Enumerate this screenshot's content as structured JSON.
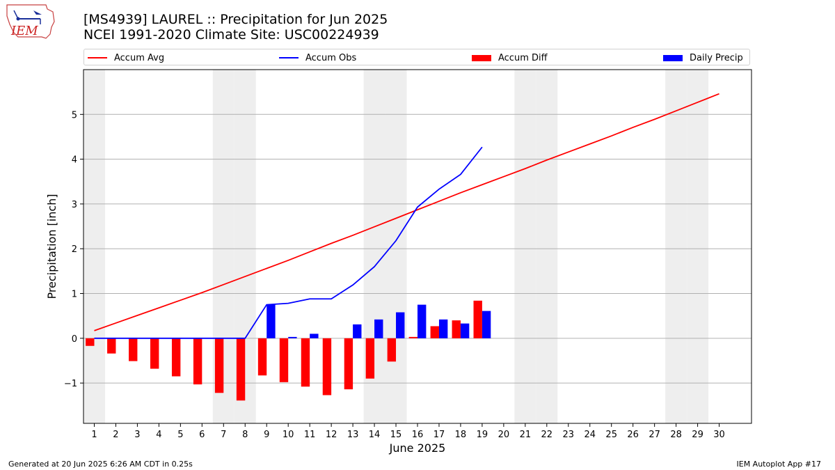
{
  "title_line1": "[MS4939] LAUREL :: Precipitation for Jun 2025",
  "title_line2": "NCEI 1991-2020 Climate Site: USC00224939",
  "logo_text": "IEM",
  "footer_left": "Generated at 20 Jun 2025 6:26 AM CDT in 0.25s",
  "footer_right": "IEM Autoplot App #17",
  "legend": [
    {
      "label": "Accum Avg",
      "kind": "line",
      "color": "#ff0000"
    },
    {
      "label": "Accum Obs",
      "kind": "line",
      "color": "#0000ff"
    },
    {
      "label": "Accum Diff",
      "kind": "bar",
      "color": "#ff0000"
    },
    {
      "label": "Daily Precip",
      "kind": "bar",
      "color": "#0000ff"
    }
  ],
  "chart_data": {
    "type": "bar",
    "xlabel": "June 2025",
    "ylabel": "Precipitation [inch]",
    "xlim": [
      0.5,
      31.5
    ],
    "ylim": [
      -1.9,
      6.0
    ],
    "yticks": [
      -1,
      0,
      1,
      2,
      3,
      4,
      5
    ],
    "ytick_labels": [
      "−1",
      "0",
      "1",
      "2",
      "3",
      "4",
      "5"
    ],
    "days": [
      1,
      2,
      3,
      4,
      5,
      6,
      7,
      8,
      9,
      10,
      11,
      12,
      13,
      14,
      15,
      16,
      17,
      18,
      19,
      20,
      21,
      22,
      23,
      24,
      25,
      26,
      27,
      28,
      29,
      30
    ],
    "weekend_days": [
      1,
      7,
      8,
      14,
      15,
      21,
      22,
      28,
      29
    ],
    "grid": "horizontal",
    "series": [
      {
        "name": "Accum Avg",
        "type": "line",
        "color": "#ff0000",
        "x": [
          1,
          2,
          3,
          4,
          5,
          6,
          7,
          8,
          9,
          10,
          11,
          12,
          13,
          14,
          15,
          16,
          17,
          18,
          19,
          20,
          21,
          22,
          23,
          24,
          25,
          26,
          27,
          28,
          29,
          30
        ],
        "values": [
          0.17,
          0.34,
          0.51,
          0.68,
          0.85,
          1.02,
          1.2,
          1.38,
          1.56,
          1.74,
          1.93,
          2.12,
          2.3,
          2.49,
          2.68,
          2.87,
          3.06,
          3.25,
          3.43,
          3.61,
          3.79,
          3.98,
          4.16,
          4.34,
          4.52,
          4.71,
          4.89,
          5.08,
          5.27,
          5.46
        ]
      },
      {
        "name": "Accum Obs",
        "type": "line",
        "color": "#0000ff",
        "x": [
          1,
          2,
          3,
          4,
          5,
          6,
          7,
          8,
          9,
          10,
          11,
          12,
          13,
          14,
          15,
          16,
          17,
          18,
          19
        ],
        "values": [
          0,
          0,
          0,
          0,
          0,
          0,
          0,
          0,
          0.75,
          0.78,
          0.88,
          0.88,
          1.19,
          1.6,
          2.18,
          2.93,
          3.33,
          3.66,
          4.27
        ]
      },
      {
        "name": "Accum Diff",
        "type": "bar",
        "color": "#ff0000",
        "x": [
          1,
          2,
          3,
          4,
          5,
          6,
          7,
          8,
          9,
          10,
          11,
          12,
          13,
          14,
          15,
          16,
          17,
          18,
          19
        ],
        "values": [
          -0.17,
          -0.34,
          -0.51,
          -0.68,
          -0.85,
          -1.03,
          -1.22,
          -1.39,
          -0.83,
          -0.98,
          -1.08,
          -1.27,
          -1.14,
          -0.9,
          -0.52,
          0.03,
          0.27,
          0.4,
          0.84
        ]
      },
      {
        "name": "Daily Precip",
        "type": "bar",
        "color": "#0000ff",
        "x": [
          1,
          2,
          3,
          4,
          5,
          6,
          7,
          8,
          9,
          10,
          11,
          12,
          13,
          14,
          15,
          16,
          17,
          18,
          19
        ],
        "values": [
          0,
          0,
          0,
          0,
          0,
          0,
          0,
          0,
          0.75,
          0.03,
          0.1,
          0,
          0.31,
          0.42,
          0.58,
          0.75,
          0.42,
          0.33,
          0.61
        ]
      }
    ]
  }
}
